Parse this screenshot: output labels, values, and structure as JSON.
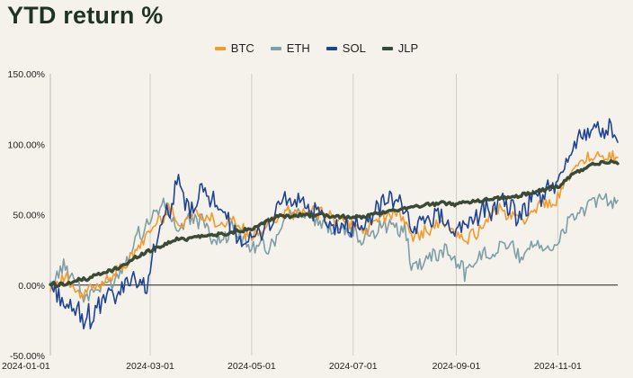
{
  "title": "YTD return %",
  "colors": {
    "BTC": "#f29a2e",
    "ETH": "#7f9fa6",
    "SOL": "#1f4494",
    "JLP": "#3a4a36"
  },
  "chart_data": {
    "type": "line",
    "title": "YTD return %",
    "xlabel": "",
    "ylabel": "",
    "ylim": [
      -50,
      150
    ],
    "y_ticks": [
      -50,
      0,
      50,
      100,
      150
    ],
    "y_tick_labels": [
      "-50.00%",
      "0.00%",
      "50.00%",
      "100.00%",
      "150.00%"
    ],
    "x_range": [
      "2024-01-01",
      "2024-12-07"
    ],
    "x_ticks": [
      "2024-01-01",
      "2024-03-01",
      "2024-05-01",
      "2024-07-01",
      "2024-09-01",
      "2024-11-01"
    ],
    "grid": "vertical",
    "legend_position": "top",
    "series": [
      {
        "name": "BTC",
        "color": "#f29a2e",
        "points": [
          [
            "2024-01-01",
            0
          ],
          [
            "2024-01-10",
            5
          ],
          [
            "2024-01-20",
            -10
          ],
          [
            "2024-01-25",
            -3
          ],
          [
            "2024-02-01",
            0
          ],
          [
            "2024-02-10",
            10
          ],
          [
            "2024-02-20",
            22
          ],
          [
            "2024-02-28",
            35
          ],
          [
            "2024-03-05",
            45
          ],
          [
            "2024-03-14",
            55
          ],
          [
            "2024-03-20",
            42
          ],
          [
            "2024-03-28",
            52
          ],
          [
            "2024-04-05",
            48
          ],
          [
            "2024-04-13",
            42
          ],
          [
            "2024-04-20",
            45
          ],
          [
            "2024-05-01",
            33
          ],
          [
            "2024-05-10",
            42
          ],
          [
            "2024-05-20",
            50
          ],
          [
            "2024-06-01",
            50
          ],
          [
            "2024-06-10",
            52
          ],
          [
            "2024-06-20",
            47
          ],
          [
            "2024-07-01",
            45
          ],
          [
            "2024-07-05",
            35
          ],
          [
            "2024-07-15",
            45
          ],
          [
            "2024-07-29",
            52
          ],
          [
            "2024-08-05",
            35
          ],
          [
            "2024-08-15",
            40
          ],
          [
            "2024-08-25",
            45
          ],
          [
            "2024-09-06",
            30
          ],
          [
            "2024-09-15",
            40
          ],
          [
            "2024-09-28",
            55
          ],
          [
            "2024-10-10",
            45
          ],
          [
            "2024-10-20",
            55
          ],
          [
            "2024-10-30",
            60
          ],
          [
            "2024-11-06",
            75
          ],
          [
            "2024-11-12",
            85
          ],
          [
            "2024-11-22",
            92
          ],
          [
            "2024-12-01",
            90
          ],
          [
            "2024-12-07",
            90
          ]
        ]
      },
      {
        "name": "ETH",
        "color": "#7f9fa6",
        "points": [
          [
            "2024-01-01",
            0
          ],
          [
            "2024-01-10",
            15
          ],
          [
            "2024-01-22",
            -8
          ],
          [
            "2024-02-01",
            -2
          ],
          [
            "2024-02-10",
            8
          ],
          [
            "2024-02-20",
            30
          ],
          [
            "2024-02-28",
            45
          ],
          [
            "2024-03-10",
            60
          ],
          [
            "2024-03-18",
            40
          ],
          [
            "2024-03-28",
            50
          ],
          [
            "2024-04-05",
            38
          ],
          [
            "2024-04-13",
            30
          ],
          [
            "2024-04-20",
            40
          ],
          [
            "2024-05-01",
            25
          ],
          [
            "2024-05-15",
            30
          ],
          [
            "2024-05-22",
            52
          ],
          [
            "2024-06-01",
            52
          ],
          [
            "2024-06-15",
            42
          ],
          [
            "2024-07-01",
            40
          ],
          [
            "2024-07-05",
            30
          ],
          [
            "2024-07-20",
            45
          ],
          [
            "2024-08-01",
            40
          ],
          [
            "2024-08-05",
            15
          ],
          [
            "2024-08-15",
            20
          ],
          [
            "2024-08-25",
            25
          ],
          [
            "2024-09-06",
            10
          ],
          [
            "2024-09-15",
            18
          ],
          [
            "2024-09-28",
            30
          ],
          [
            "2024-10-10",
            20
          ],
          [
            "2024-10-20",
            30
          ],
          [
            "2024-10-30",
            25
          ],
          [
            "2024-11-06",
            40
          ],
          [
            "2024-11-12",
            50
          ],
          [
            "2024-11-22",
            58
          ],
          [
            "2024-12-01",
            62
          ],
          [
            "2024-12-07",
            62
          ]
        ]
      },
      {
        "name": "SOL",
        "color": "#1f4494",
        "points": [
          [
            "2024-01-01",
            0
          ],
          [
            "2024-01-08",
            -10
          ],
          [
            "2024-01-15",
            -20
          ],
          [
            "2024-01-23",
            -25
          ],
          [
            "2024-02-01",
            -10
          ],
          [
            "2024-02-10",
            -5
          ],
          [
            "2024-02-20",
            5
          ],
          [
            "2024-02-26",
            -5
          ],
          [
            "2024-03-05",
            30
          ],
          [
            "2024-03-12",
            55
          ],
          [
            "2024-03-18",
            70
          ],
          [
            "2024-03-25",
            50
          ],
          [
            "2024-04-01",
            68
          ],
          [
            "2024-04-08",
            60
          ],
          [
            "2024-04-13",
            45
          ],
          [
            "2024-04-20",
            40
          ],
          [
            "2024-05-01",
            30
          ],
          [
            "2024-05-10",
            40
          ],
          [
            "2024-05-20",
            65
          ],
          [
            "2024-06-01",
            55
          ],
          [
            "2024-06-10",
            50
          ],
          [
            "2024-06-20",
            40
          ],
          [
            "2024-07-01",
            40
          ],
          [
            "2024-07-10",
            45
          ],
          [
            "2024-07-20",
            60
          ],
          [
            "2024-07-29",
            58
          ],
          [
            "2024-08-05",
            40
          ],
          [
            "2024-08-15",
            50
          ],
          [
            "2024-08-25",
            45
          ],
          [
            "2024-09-06",
            40
          ],
          [
            "2024-09-15",
            50
          ],
          [
            "2024-09-28",
            60
          ],
          [
            "2024-10-10",
            50
          ],
          [
            "2024-10-20",
            60
          ],
          [
            "2024-10-30",
            70
          ],
          [
            "2024-11-06",
            85
          ],
          [
            "2024-11-12",
            100
          ],
          [
            "2024-11-22",
            115
          ],
          [
            "2024-12-01",
            110
          ],
          [
            "2024-12-07",
            102
          ]
        ]
      },
      {
        "name": "JLP",
        "color": "#3a4a36",
        "points": [
          [
            "2024-01-01",
            0
          ],
          [
            "2024-01-15",
            2
          ],
          [
            "2024-02-01",
            8
          ],
          [
            "2024-02-15",
            15
          ],
          [
            "2024-03-01",
            25
          ],
          [
            "2024-03-15",
            32
          ],
          [
            "2024-04-01",
            35
          ],
          [
            "2024-04-15",
            36
          ],
          [
            "2024-05-01",
            40
          ],
          [
            "2024-05-15",
            48
          ],
          [
            "2024-06-01",
            50
          ],
          [
            "2024-06-15",
            49
          ],
          [
            "2024-07-01",
            48
          ],
          [
            "2024-07-15",
            50
          ],
          [
            "2024-08-01",
            55
          ],
          [
            "2024-08-15",
            57
          ],
          [
            "2024-09-01",
            58
          ],
          [
            "2024-09-15",
            60
          ],
          [
            "2024-10-01",
            62
          ],
          [
            "2024-10-15",
            65
          ],
          [
            "2024-11-01",
            70
          ],
          [
            "2024-11-10",
            78
          ],
          [
            "2024-11-20",
            85
          ],
          [
            "2024-12-01",
            87
          ],
          [
            "2024-12-07",
            87
          ]
        ]
      }
    ]
  }
}
